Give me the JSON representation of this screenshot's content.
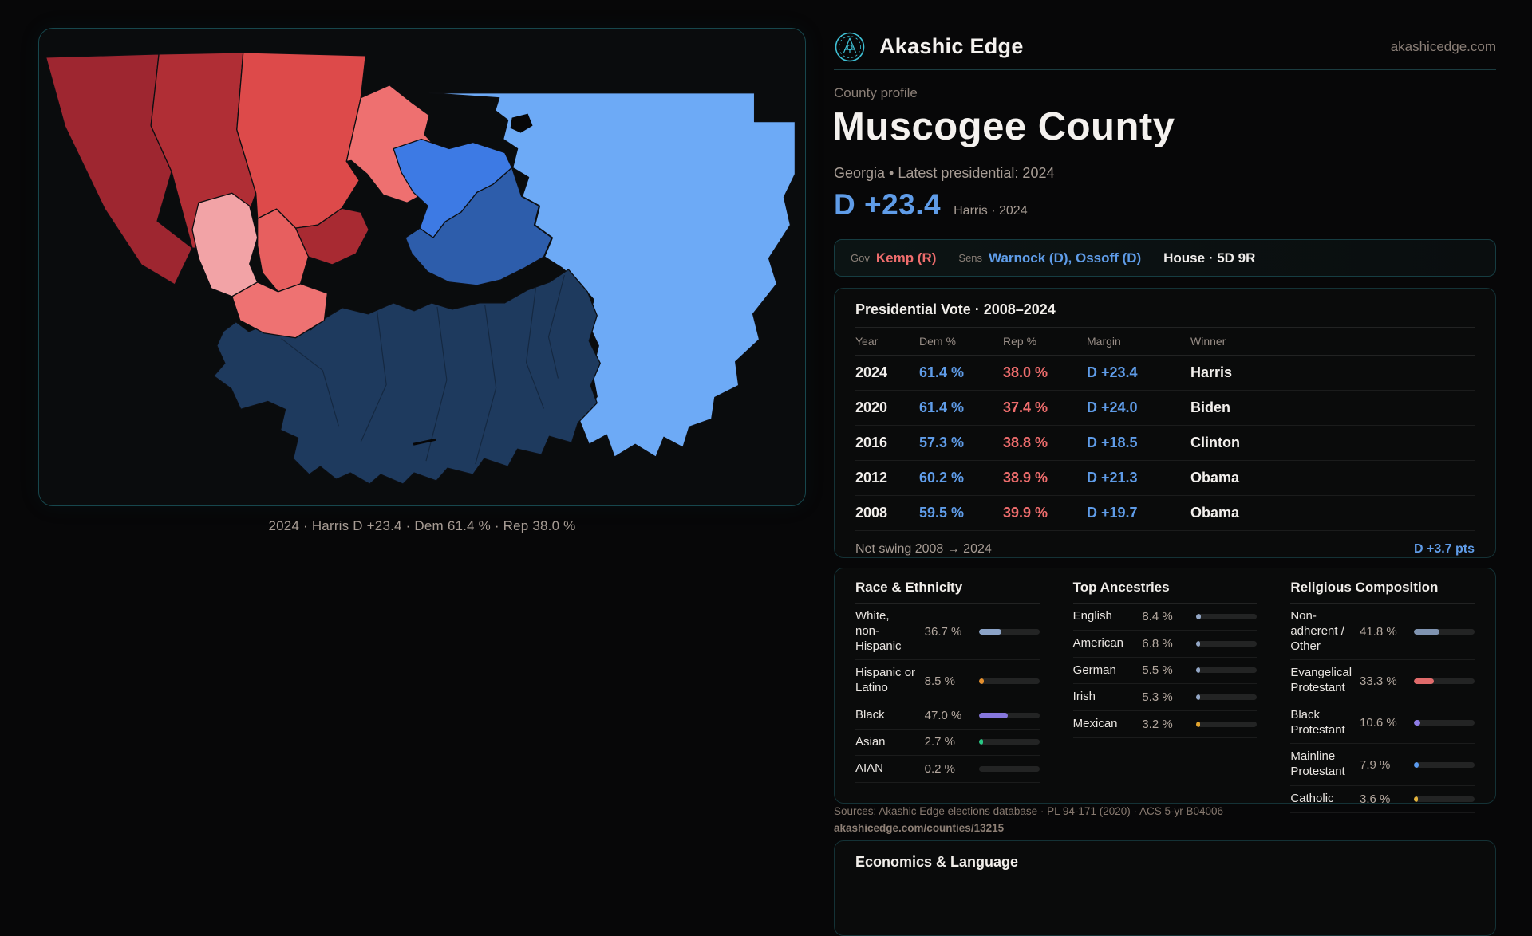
{
  "colors": {
    "accent": "#3fc0d4",
    "dem": "#5f9ce8",
    "rep": "#ef6d6d"
  },
  "header": {
    "brand": "Akashic Edge",
    "site": "akashicedge.com"
  },
  "profile": {
    "kicker": "County profile",
    "title": "Muscogee County",
    "subtitle": "Georgia • Latest presidential: 2024",
    "headline_margin": "D +23.4",
    "headline_note": "Harris · 2024"
  },
  "officials": {
    "gov_label": "Gov",
    "gov_value": "Kemp (R)",
    "sens_label": "Sens",
    "sens_value": "Warnock (D), Ossoff (D)",
    "house_value": "House · 5D 9R"
  },
  "map": {
    "caption": "2024 · Harris D +23.4 · Dem 61.4 % · Rep 38.0 %"
  },
  "presidential": {
    "title": "Presidential Vote · 2008–2024",
    "columns": [
      "Year",
      "Dem %",
      "Rep %",
      "Margin",
      "Winner"
    ],
    "rows": [
      {
        "year": "2024",
        "dem": "61.4 %",
        "rep": "38.0 %",
        "margin": "D +23.4",
        "winner": "Harris"
      },
      {
        "year": "2020",
        "dem": "61.4 %",
        "rep": "37.4 %",
        "margin": "D +24.0",
        "winner": "Biden"
      },
      {
        "year": "2016",
        "dem": "57.3 %",
        "rep": "38.8 %",
        "margin": "D +18.5",
        "winner": "Clinton"
      },
      {
        "year": "2012",
        "dem": "60.2 %",
        "rep": "38.9 %",
        "margin": "D +21.3",
        "winner": "Obama"
      },
      {
        "year": "2008",
        "dem": "59.5 %",
        "rep": "39.9 %",
        "margin": "D +19.7",
        "winner": "Obama"
      }
    ],
    "net_swing_label": "Net swing 2008 → 2024",
    "net_swing_value": "D +3.7 pts"
  },
  "demographics": {
    "panels": [
      {
        "title": "Race & Ethnicity",
        "rows": [
          {
            "label": "White, non-Hispanic",
            "value": "36.7 %",
            "pct": 36.7,
            "color": "#8ba3c7"
          },
          {
            "label": "Hispanic or Latino",
            "value": "8.5 %",
            "pct": 8.5,
            "color": "#e5902e"
          },
          {
            "label": "Black",
            "value": "47.0 %",
            "pct": 47.0,
            "color": "#8677dd"
          },
          {
            "label": "Asian",
            "value": "2.7 %",
            "pct": 2.7,
            "color": "#28c784"
          },
          {
            "label": "AIAN",
            "value": "0.2 %",
            "pct": 0.2,
            "color": "#8a8f98"
          }
        ]
      },
      {
        "title": "Top Ancestries",
        "rows": [
          {
            "label": "English",
            "value": "8.4 %",
            "pct": 8.4,
            "color": "#93a7c6"
          },
          {
            "label": "American",
            "value": "6.8 %",
            "pct": 6.8,
            "color": "#93a7c6"
          },
          {
            "label": "German",
            "value": "5.5 %",
            "pct": 5.5,
            "color": "#93a7c6"
          },
          {
            "label": "Irish",
            "value": "5.3 %",
            "pct": 5.3,
            "color": "#93a7c6"
          },
          {
            "label": "Mexican",
            "value": "3.2 %",
            "pct": 3.2,
            "color": "#e2a42e"
          }
        ]
      },
      {
        "title": "Religious Composition",
        "rows": [
          {
            "label": "Non-adherent / Other",
            "value": "41.8 %",
            "pct": 41.8,
            "color": "#7f93b0"
          },
          {
            "label": "Evangelical Protestant",
            "value": "33.3 %",
            "pct": 33.3,
            "color": "#e06b6b"
          },
          {
            "label": "Black Protestant",
            "value": "10.6 %",
            "pct": 10.6,
            "color": "#8d7ce6"
          },
          {
            "label": "Mainline Protestant",
            "value": "7.9 %",
            "pct": 7.9,
            "color": "#5b9bf0"
          },
          {
            "label": "Catholic",
            "value": "3.6 %",
            "pct": 3.6,
            "color": "#e3b33c"
          }
        ]
      }
    ]
  },
  "sources": {
    "line1": "Sources: Akashic Edge elections database · PL 94-171 (2020) · ACS 5-yr B04006",
    "line2": "akashicedge.com/counties/13215"
  },
  "economics": {
    "title": "Economics & Language"
  }
}
